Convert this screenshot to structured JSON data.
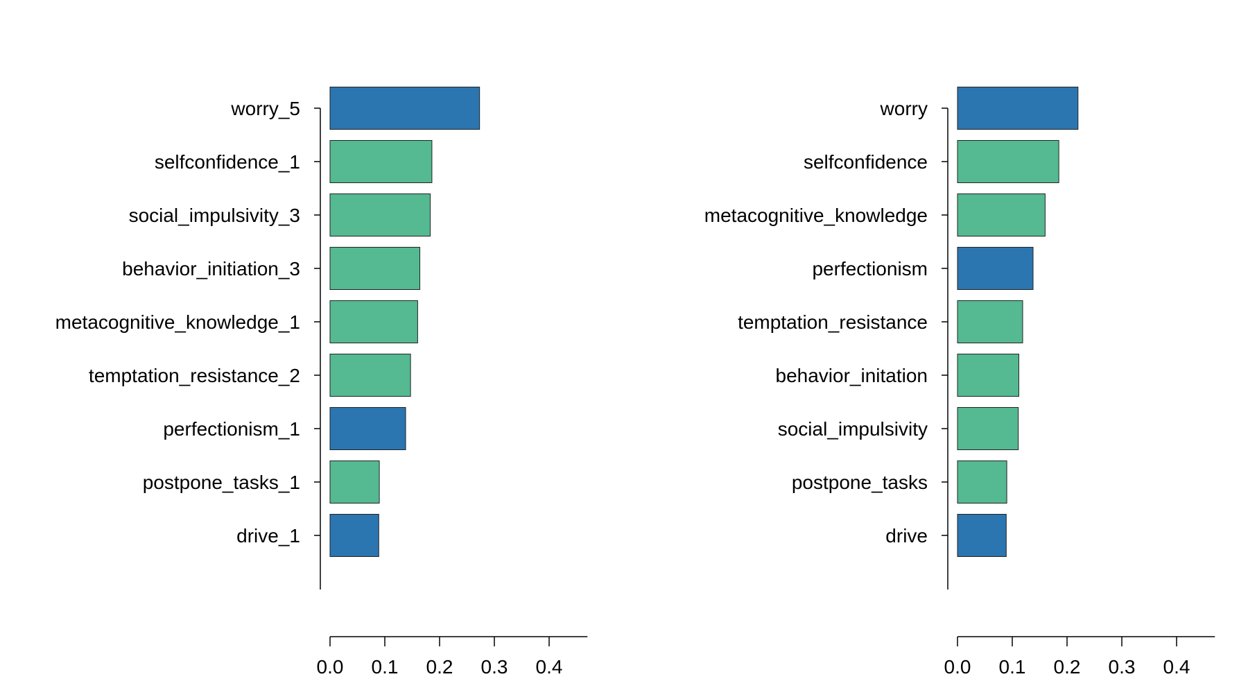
{
  "colors": {
    "blue": "#2b75b0",
    "green": "#55b991"
  },
  "chart_data": [
    {
      "type": "bar",
      "orientation": "horizontal",
      "title": "",
      "xlabel": "",
      "ylabel": "",
      "xlim": [
        0,
        0.47
      ],
      "xticks": [
        "0.0",
        "0.1",
        "0.2",
        "0.3",
        "0.4"
      ],
      "grid": false,
      "categories": [
        "worry_5",
        "selfconfidence_1",
        "social_impulsivity_3",
        "behavior_initiation_3",
        "metacognitive_knowledge_1",
        "temptation_resistance_2",
        "perfectionism_1",
        "postpone_tasks_1",
        "drive_1"
      ],
      "values": [
        0.273,
        0.186,
        0.183,
        0.164,
        0.16,
        0.147,
        0.138,
        0.09,
        0.089
      ],
      "bar_colors": [
        "blue",
        "green",
        "green",
        "green",
        "green",
        "green",
        "blue",
        "green",
        "blue"
      ]
    },
    {
      "type": "bar",
      "orientation": "horizontal",
      "title": "",
      "xlabel": "",
      "ylabel": "",
      "xlim": [
        0,
        0.47
      ],
      "xticks": [
        "0.0",
        "0.1",
        "0.2",
        "0.3",
        "0.4"
      ],
      "grid": false,
      "categories": [
        "worry",
        "selfconfidence",
        "metacognitive_knowledge",
        "perfectionism",
        "temptation_resistance",
        "behavior_initation",
        "social_impulsivity",
        "postpone_tasks",
        "drive"
      ],
      "values": [
        0.22,
        0.185,
        0.16,
        0.138,
        0.119,
        0.112,
        0.111,
        0.09,
        0.089
      ],
      "bar_colors": [
        "blue",
        "green",
        "green",
        "blue",
        "green",
        "green",
        "green",
        "green",
        "blue"
      ]
    }
  ]
}
